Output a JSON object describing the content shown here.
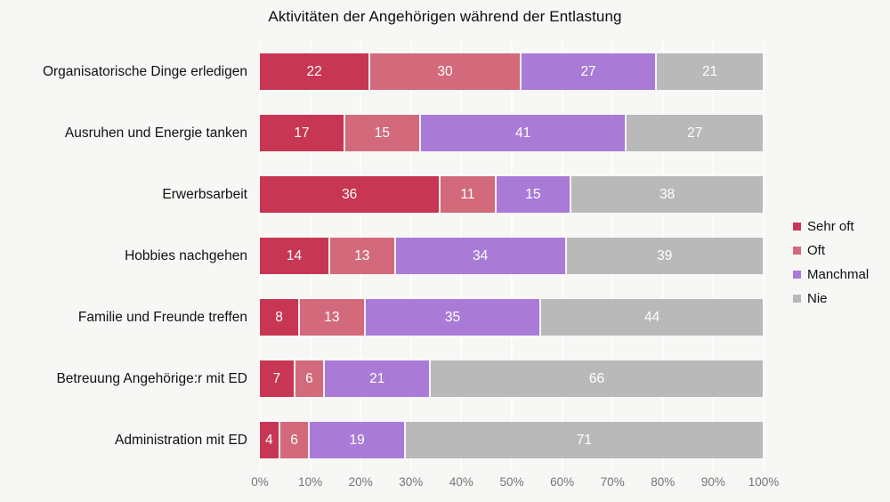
{
  "title": "Aktivitäten der Angehörigen während der Entlastung",
  "colors": {
    "background": "#f7f7f5",
    "gridline": "#fdfdfc",
    "axis_text": "#757575",
    "label_text": "#111111",
    "value_text": "#ffffff"
  },
  "chart_data": {
    "type": "bar",
    "orientation": "horizontal",
    "stacked": true,
    "grid": true,
    "legend_position": "right",
    "title": "Aktivitäten der Angehörigen während der Entlastung",
    "xlabel": "",
    "ylabel": "",
    "xlim": [
      0,
      100
    ],
    "x_ticks": [
      "0%",
      "10%",
      "20%",
      "30%",
      "40%",
      "50%",
      "60%",
      "70%",
      "80%",
      "90%",
      "100%"
    ],
    "categories": [
      "Organisatorische Dinge erledigen",
      "Ausruhen und Energie tanken",
      "Erwerbsarbeit",
      "Hobbies nachgehen",
      "Familie und Freunde treffen",
      "Betreuung Angehörige:r mit ED",
      "Administration mit ED"
    ],
    "series": [
      {
        "name": "Sehr oft",
        "color": "#c73652",
        "values": [
          22,
          17,
          36,
          14,
          8,
          7,
          4
        ]
      },
      {
        "name": "Oft",
        "color": "#d26a7c",
        "values": [
          30,
          15,
          11,
          13,
          13,
          6,
          6
        ]
      },
      {
        "name": "Manchmal",
        "color": "#a97bd6",
        "values": [
          27,
          41,
          15,
          34,
          35,
          21,
          19
        ]
      },
      {
        "name": "Nie",
        "color": "#b9b9b9",
        "values": [
          21,
          27,
          38,
          39,
          44,
          66,
          71
        ]
      }
    ]
  }
}
